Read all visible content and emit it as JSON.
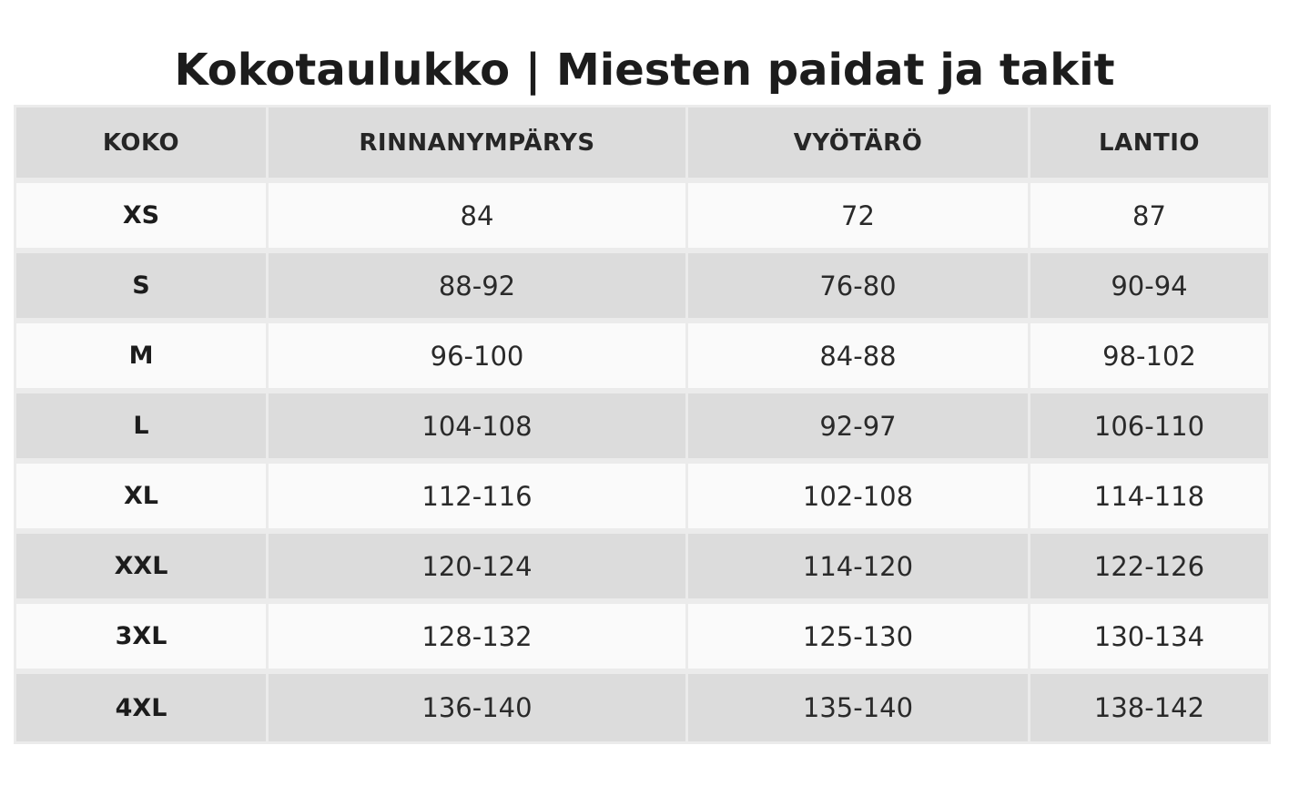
{
  "title": "Kokotaulukko | Miesten paidat ja takit",
  "table": {
    "headers": [
      "KOKO",
      "RINNANYMPÄRYS",
      "VYÖTÄRÖ",
      "LANTIO"
    ],
    "rows": [
      [
        "XS",
        "84",
        "72",
        "87"
      ],
      [
        "S",
        "88-92",
        "76-80",
        "90-94"
      ],
      [
        "M",
        "96-100",
        "84-88",
        "98-102"
      ],
      [
        "L",
        "104-108",
        "92-97",
        "106-110"
      ],
      [
        "XL",
        "112-116",
        "102-108",
        "114-118"
      ],
      [
        "XXL",
        "120-124",
        "114-120",
        "122-126"
      ],
      [
        "3XL",
        "128-132",
        "125-130",
        "130-134"
      ],
      [
        "4XL",
        "136-140",
        "135-140",
        "138-142"
      ]
    ]
  },
  "colors": {
    "header_background": "#dcdcdc",
    "row_light": "#fafafa",
    "row_dark": "#dcdcdc",
    "grid_lines": "#ebebeb",
    "text": "#1c1c1c"
  }
}
